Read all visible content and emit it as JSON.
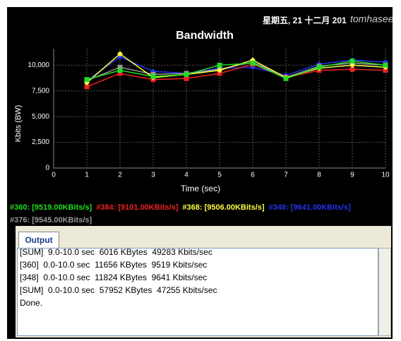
{
  "header": {
    "date": "星期五, 21 十二月 201",
    "watermark": "tomhasee"
  },
  "chart_data": {
    "type": "line",
    "title": "Bandwidth",
    "x_label": "Time (sec)",
    "y_label": "Kbits (BW)",
    "x": [
      1,
      2,
      3,
      4,
      5,
      6,
      7,
      8,
      9,
      10
    ],
    "xlim": [
      0,
      10
    ],
    "xticks": [
      0,
      1,
      2,
      3,
      4,
      5,
      6,
      7,
      8,
      9,
      10
    ],
    "ylim": [
      0,
      11600
    ],
    "yticks": [
      0,
      {
        "value": 2500,
        "label": "2,500"
      },
      {
        "value": 5000,
        "label": "5,000"
      },
      {
        "value": 7500,
        "label": "7,500"
      },
      {
        "value": 10000,
        "label": "10,000"
      }
    ],
    "grid": true,
    "series": [
      {
        "name": "#360: [9519.00KBits/s]",
        "color": "#22dd22",
        "marker": "square",
        "values": [
          8600,
          9500,
          8900,
          9100,
          10000,
          10200,
          8700,
          9800,
          10400,
          10000
        ]
      },
      {
        "name": "#384: [9101.00KBits/s]",
        "color": "#ee2222",
        "marker": "square",
        "values": [
          7900,
          9200,
          8600,
          8700,
          9200,
          10100,
          8800,
          9500,
          9600,
          9500
        ]
      },
      {
        "name": "#368: [9506.00KBits/s]",
        "color": "#ffff44",
        "marker": "diamond",
        "values": [
          8300,
          11100,
          8800,
          9100,
          9500,
          10500,
          8800,
          9700,
          10000,
          9800
        ]
      },
      {
        "name": "#348: [9641.00KBits/s]",
        "color": "#2233ee",
        "marker": "diamond",
        "values": [
          8500,
          10800,
          9400,
          9200,
          9700,
          9800,
          9000,
          10100,
          10500,
          10300
        ]
      },
      {
        "name": "#376: [9545.00KBits/s]",
        "color": "#999999",
        "marker": "square",
        "values": [
          8500,
          9800,
          9100,
          9200,
          9600,
          10300,
          8800,
          9900,
          10200,
          10000
        ]
      }
    ]
  },
  "output": {
    "tab": "Output",
    "lines": [
      "[SUM]  9.0-10.0 sec  6016 KBytes  49283 Kbits/sec",
      "[360]  0.0-10.0 sec  11656 KBytes  9519 Kbits/sec",
      "[348]  0.0-10.0 sec  11824 KBytes  9641 Kbits/sec",
      "[SUM]  0.0-10.0 sec  57952 KBytes  47255 Kbits/sec",
      "Done."
    ]
  }
}
